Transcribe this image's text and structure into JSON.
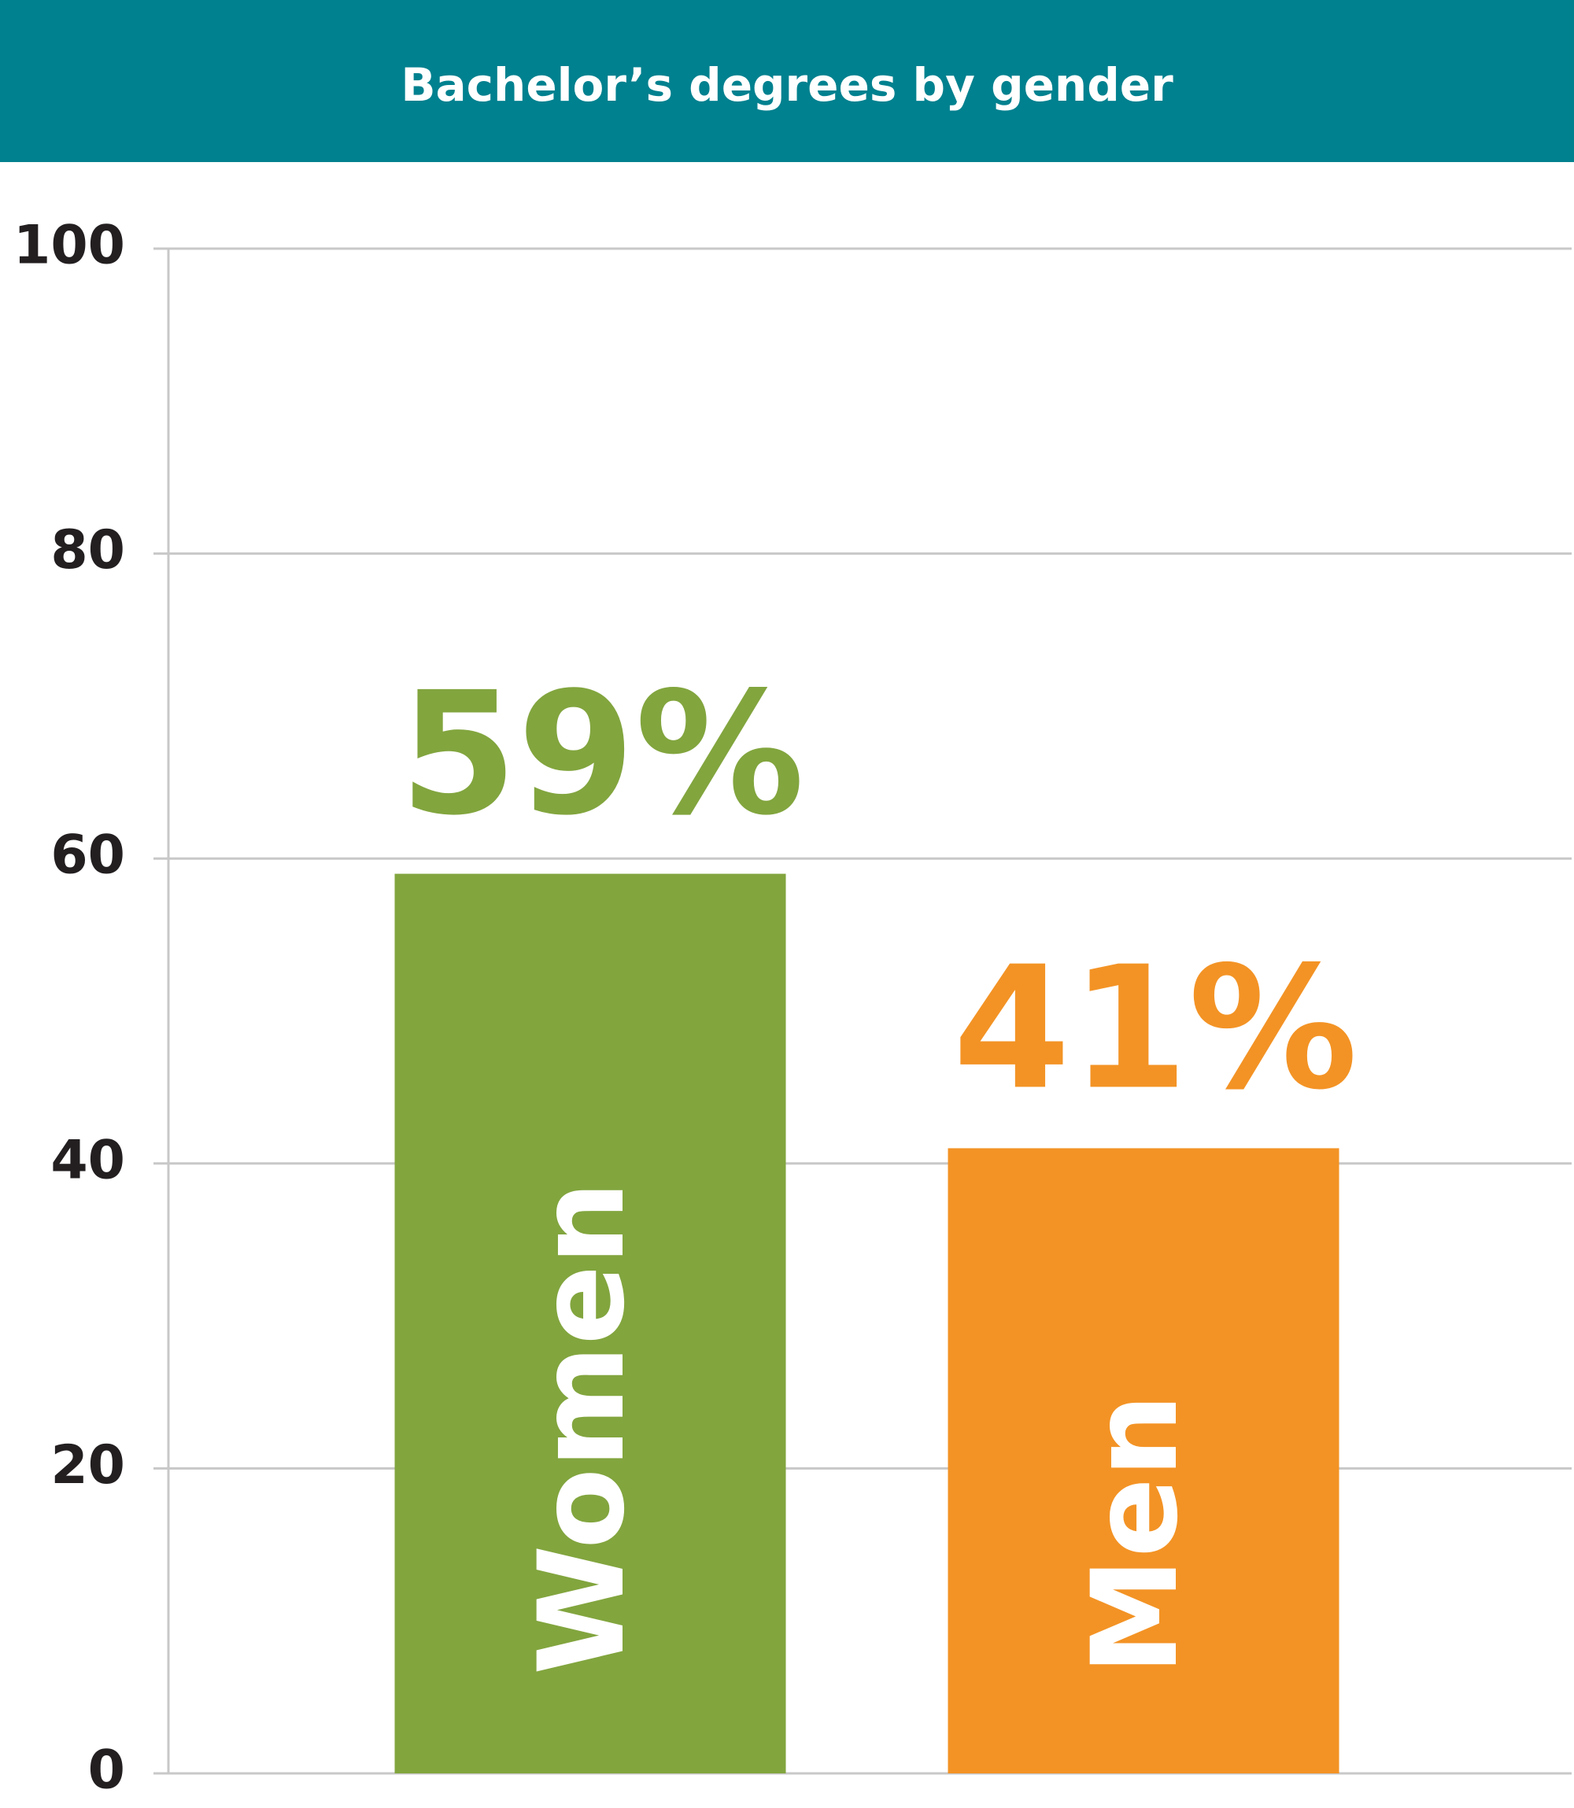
{
  "chart_data": {
    "type": "bar",
    "title": "Bachelor’s degrees by gender",
    "categories": [
      "Women",
      "Men"
    ],
    "values": [
      59,
      41
    ],
    "value_labels": [
      "59%",
      "41%"
    ],
    "colors": [
      "#82a53e",
      "#f39325"
    ],
    "ylim": [
      0,
      100
    ],
    "yticks": [
      0,
      20,
      40,
      60,
      80,
      100
    ],
    "grid": true
  }
}
